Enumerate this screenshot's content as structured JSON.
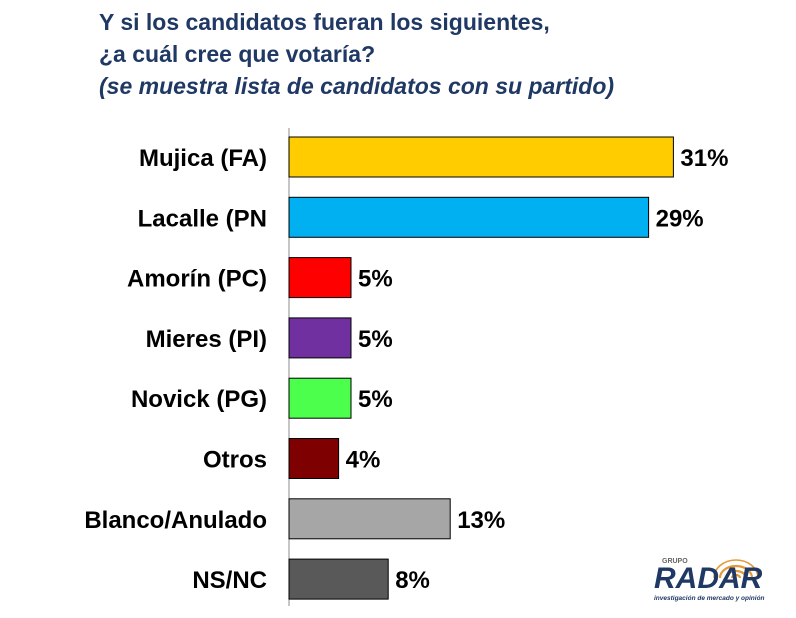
{
  "title": {
    "line1": "Y si los candidatos fueran los siguientes,",
    "line2": "¿a cuál cree que votaría?",
    "line3": "(se muestra lista de candidatos con su partido)"
  },
  "chart_data": {
    "type": "bar",
    "orientation": "horizontal",
    "categories": [
      "Mujica (FA)",
      "Lacalle (PN",
      "Amorín (PC)",
      "Mieres (PI)",
      "Novick (PG)",
      "Otros",
      "Blanco/Anulado",
      "NS/NC"
    ],
    "values": [
      31,
      29,
      5,
      5,
      5,
      4,
      13,
      8
    ],
    "value_labels": [
      "31%",
      "29%",
      "5%",
      "5%",
      "5%",
      "4%",
      "13%",
      "8%"
    ],
    "colors": [
      "#ffcc00",
      "#00b0f0",
      "#ff0000",
      "#7030a0",
      "#4cff4c",
      "#7f0000",
      "#a6a6a6",
      "#595959"
    ],
    "xlim": [
      0,
      35
    ],
    "grid": false,
    "legend": "none"
  },
  "logo": {
    "top_text": "GRUPO",
    "name": "RADAR",
    "tagline": "investigación de mercado y opinión"
  }
}
